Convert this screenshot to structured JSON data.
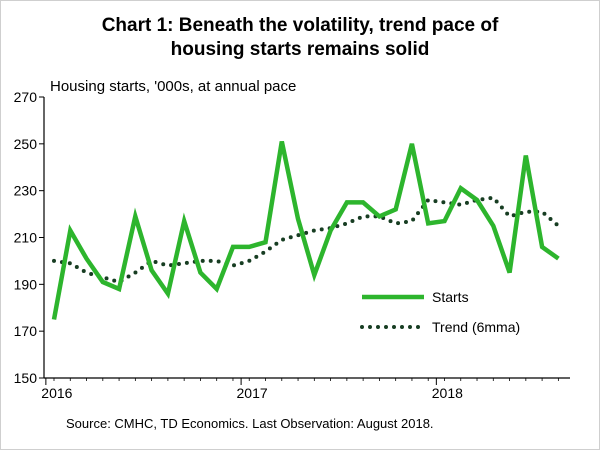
{
  "chart_data": {
    "type": "line",
    "title_line1": "Chart 1: Beneath the volatility, trend pace of",
    "title_line2": "housing starts remains solid",
    "ylabel": "Housing starts, '000s, at annual pace",
    "source": "Source: CMHC, TD Economics.  Last Observation: August 2018.",
    "ylim": [
      150,
      270
    ],
    "yticks": [
      150,
      170,
      190,
      210,
      230,
      250,
      270
    ],
    "ytick_labels": [
      "150",
      "170",
      "190",
      "210",
      "230",
      "250",
      "270"
    ],
    "x_period_count": 32,
    "xticks": [
      {
        "index": 0,
        "label": "2016"
      },
      {
        "index": 12,
        "label": "2017"
      },
      {
        "index": 24,
        "label": "2018"
      }
    ],
    "series": [
      {
        "name": "Starts",
        "style": "solid",
        "color": "#2db52d",
        "values": [
          175,
          213,
          201,
          191,
          188,
          219,
          196,
          186,
          217,
          195,
          188,
          206,
          206,
          208,
          251,
          218,
          194,
          213,
          225,
          225,
          219,
          222,
          250,
          216,
          217,
          231,
          226,
          215,
          195,
          245,
          206,
          201
        ]
      },
      {
        "name": "Trend (6mma)",
        "style": "dotted",
        "color": "#173d22",
        "values": [
          200,
          199,
          195,
          193,
          191,
          195,
          200,
          198,
          199,
          200,
          200,
          198,
          200,
          204,
          209,
          211,
          213,
          214,
          216,
          219,
          219,
          216,
          217,
          226,
          225,
          224,
          226,
          227,
          219,
          221,
          221,
          215
        ]
      }
    ],
    "legend_position": "bottom-right"
  }
}
